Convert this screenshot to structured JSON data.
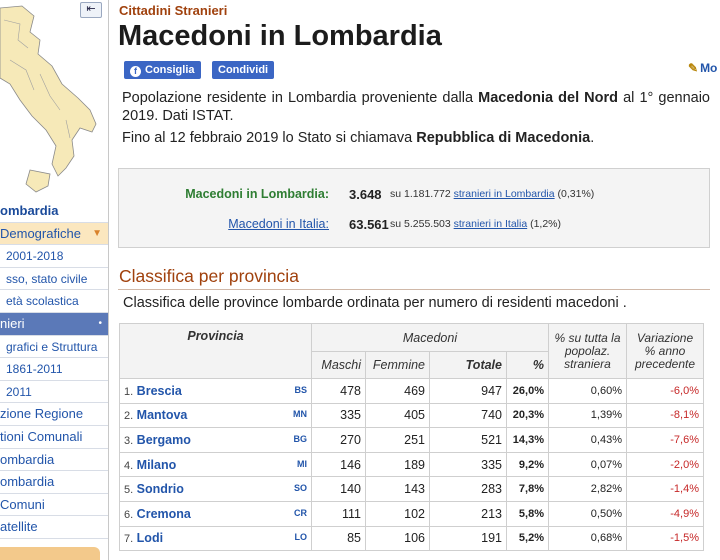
{
  "sidebar": {
    "map_button": "⇤",
    "items": [
      {
        "label": "ombardia",
        "style": "bold"
      },
      {
        "label": "Demografiche",
        "style": "hl"
      },
      {
        "label": "2001-2018",
        "style": "sub"
      },
      {
        "label": "sso, stato civile",
        "style": "sub"
      },
      {
        "label": "età scolastica",
        "style": "sub"
      },
      {
        "label": "nieri",
        "style": "active"
      },
      {
        "label": "grafici e Struttura",
        "style": "sub"
      },
      {
        "label": "1861-2011",
        "style": "sub"
      },
      {
        "label": "2011",
        "style": "sub"
      },
      {
        "label": "zione Regione",
        "style": ""
      },
      {
        "label": "tioni Comunali",
        "style": ""
      },
      {
        "label": "ombardia",
        "style": ""
      },
      {
        "label": "ombardia",
        "style": ""
      },
      {
        "label": "Comuni",
        "style": ""
      },
      {
        "label": "atellite",
        "style": ""
      }
    ]
  },
  "header": {
    "kicker": "Cittadini Stranieri",
    "title": "Macedoni in Lombardia",
    "recommend_label": "Consiglia",
    "share_label": "Condividi",
    "edit_label": "Mo"
  },
  "intro": {
    "part1": "Popolazione residente in Lombardia proveniente dalla ",
    "bold": "Macedonia del Nord",
    "part2": " al 1° gennaio 2019. Dati ISTAT.",
    "note_part1": "Fino al 12 febbraio 2019 lo Stato si chiamava ",
    "note_bold": "Repubblica di Macedonia",
    "note_part2": "."
  },
  "summary": {
    "row1": {
      "label": "Macedoni in Lombardia:",
      "value": "3.648",
      "pre": "su 1.181.772 ",
      "link": "stranieri in Lombardia",
      "post": " (0,31%)"
    },
    "row2": {
      "label": "Macedoni in Italia:",
      "value": "63.561",
      "pre": "su 5.255.503 ",
      "link": "stranieri in Italia",
      "post": " (1,2%)"
    }
  },
  "section": {
    "title": "Classifica per provincia",
    "description": "Classifica delle province lombarde ordinata per numero di residenti macedoni ."
  },
  "table": {
    "headers": {
      "provincia": "Provincia",
      "macedoni": "Macedoni",
      "share": "% su tutta la popolaz. straniera",
      "variation": "Variazione % anno precedente",
      "maschi": "Maschi",
      "femmine": "Femmine",
      "totale": "Totale",
      "pct": "%"
    },
    "rows": [
      {
        "rank": "1.",
        "name": "Brescia",
        "code": "BS",
        "m": "478",
        "f": "469",
        "t": "947",
        "pct": "26,0%",
        "share": "0,60%",
        "var": "-6,0%"
      },
      {
        "rank": "2.",
        "name": "Mantova",
        "code": "MN",
        "m": "335",
        "f": "405",
        "t": "740",
        "pct": "20,3%",
        "share": "1,39%",
        "var": "-8,1%"
      },
      {
        "rank": "3.",
        "name": "Bergamo",
        "code": "BG",
        "m": "270",
        "f": "251",
        "t": "521",
        "pct": "14,3%",
        "share": "0,43%",
        "var": "-7,6%"
      },
      {
        "rank": "4.",
        "name": "Milano",
        "code": "MI",
        "m": "146",
        "f": "189",
        "t": "335",
        "pct": "9,2%",
        "share": "0,07%",
        "var": "-2,0%"
      },
      {
        "rank": "5.",
        "name": "Sondrio",
        "code": "SO",
        "m": "140",
        "f": "143",
        "t": "283",
        "pct": "7,8%",
        "share": "2,82%",
        "var": "-1,4%"
      },
      {
        "rank": "6.",
        "name": "Cremona",
        "code": "CR",
        "m": "111",
        "f": "102",
        "t": "213",
        "pct": "5,8%",
        "share": "0,50%",
        "var": "-4,9%"
      },
      {
        "rank": "7.",
        "name": "Lodi",
        "code": "LO",
        "m": "85",
        "f": "106",
        "t": "191",
        "pct": "5,2%",
        "share": "0,68%",
        "var": "-1,5%"
      }
    ]
  }
}
